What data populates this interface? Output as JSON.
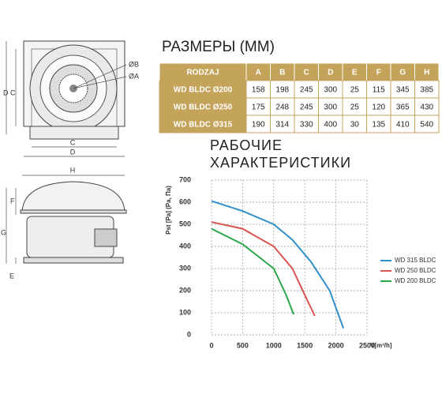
{
  "drawing": {
    "top_labels": [
      "D",
      "C",
      "ØB",
      "ØA",
      "C",
      "D"
    ],
    "side_labels": [
      "H",
      "F",
      "G",
      "E"
    ]
  },
  "table": {
    "title": "РАЗМЕРЫ (ММ)",
    "header": [
      "RODZAJ",
      "A",
      "B",
      "C",
      "D",
      "E",
      "F",
      "G",
      "H"
    ],
    "rows": [
      [
        "WD BLDC Ø200",
        158,
        198,
        245,
        300,
        25,
        115,
        345,
        385
      ],
      [
        "WD BLDC Ø250",
        175,
        248,
        245,
        300,
        25,
        120,
        365,
        430
      ],
      [
        "WD BLDC Ø315",
        190,
        314,
        330,
        400,
        30,
        135,
        410,
        540
      ]
    ]
  },
  "chart_data": {
    "type": "line",
    "title": "РАБОЧИЕ ХАРАКТЕРИСТИКИ",
    "y_label": "Pst [Pa] (Pa, Πa)",
    "x_label": "V[m³/h]",
    "xlim": [
      0,
      2500
    ],
    "ylim": [
      0,
      700
    ],
    "xticks": [
      0,
      500,
      1000,
      1500,
      2000,
      2500
    ],
    "yticks": [
      0,
      100,
      200,
      300,
      400,
      500,
      600,
      700
    ],
    "grid": true,
    "legend": "right",
    "series": [
      {
        "name": "WD 315 BLDC",
        "color": "#2f8fc9",
        "x": [
          0,
          500,
          1000,
          1300,
          1600,
          1900,
          2120
        ],
        "values": [
          605,
          560,
          500,
          430,
          330,
          200,
          30
        ]
      },
      {
        "name": "WD 250 BLDC",
        "color": "#d9534f",
        "x": [
          0,
          500,
          1000,
          1300,
          1500,
          1660
        ],
        "values": [
          510,
          480,
          400,
          300,
          180,
          86
        ]
      },
      {
        "name": "WD 200 BLDC",
        "color": "#2aa84a",
        "x": [
          0,
          500,
          1000,
          1200,
          1320
        ],
        "values": [
          480,
          410,
          300,
          180,
          93
        ]
      }
    ]
  }
}
